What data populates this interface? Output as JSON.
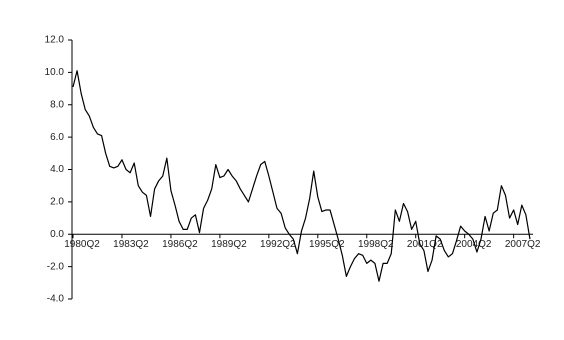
{
  "chart_data": {
    "type": "line",
    "categories": [
      "1980Q2",
      null,
      null,
      null,
      null,
      null,
      null,
      null,
      null,
      null,
      null,
      null,
      "1983Q2",
      null,
      null,
      null,
      null,
      null,
      null,
      null,
      null,
      null,
      null,
      null,
      "1986Q2",
      null,
      null,
      null,
      null,
      null,
      null,
      null,
      null,
      null,
      null,
      null,
      "1989Q2",
      null,
      null,
      null,
      null,
      null,
      null,
      null,
      null,
      null,
      null,
      null,
      "1992Q2",
      null,
      null,
      null,
      null,
      null,
      null,
      null,
      null,
      null,
      null,
      null,
      "1995Q2",
      null,
      null,
      null,
      null,
      null,
      null,
      null,
      null,
      null,
      null,
      null,
      "1998Q2",
      null,
      null,
      null,
      null,
      null,
      null,
      null,
      null,
      null,
      null,
      null,
      "2001Q2",
      null,
      null,
      null,
      null,
      null,
      null,
      null,
      null,
      null,
      null,
      null,
      "2004Q2",
      null,
      null,
      null,
      null,
      null,
      null,
      null,
      null,
      null,
      null,
      null,
      "2007Q2",
      null,
      null,
      null,
      null
    ],
    "values": [
      9.1,
      10.1,
      8.7,
      7.7,
      7.3,
      6.6,
      6.2,
      6.1,
      5.0,
      4.2,
      4.1,
      4.2,
      4.6,
      4.0,
      3.8,
      4.4,
      3.0,
      2.6,
      2.4,
      1.1,
      2.8,
      3.3,
      3.6,
      4.7,
      2.7,
      1.8,
      0.8,
      0.3,
      0.3,
      1.0,
      1.2,
      0.1,
      1.6,
      2.1,
      2.8,
      4.3,
      3.5,
      3.6,
      4.0,
      3.6,
      3.3,
      2.8,
      2.4,
      2.0,
      2.8,
      3.6,
      4.3,
      4.5,
      3.6,
      2.6,
      1.6,
      1.3,
      0.4,
      0.0,
      -0.3,
      -1.2,
      0.2,
      1.0,
      2.2,
      3.9,
      2.3,
      1.4,
      1.5,
      1.5,
      0.6,
      -0.3,
      -1.3,
      -2.6,
      -2.0,
      -1.5,
      -1.2,
      -1.3,
      -1.8,
      -1.6,
      -1.8,
      -2.9,
      -1.8,
      -1.8,
      -1.2,
      1.5,
      0.8,
      1.9,
      1.4,
      0.3,
      0.8,
      -0.6,
      -1.0,
      -2.3,
      -1.6,
      -0.1,
      -0.3,
      -1.0,
      -1.4,
      -1.2,
      -0.4,
      0.5,
      0.2,
      0.0,
      -0.3,
      -1.1,
      -0.3,
      1.1,
      0.2,
      1.3,
      1.5,
      3.0,
      2.4,
      1.0,
      1.5,
      0.6,
      1.8,
      1.2,
      -0.3
    ],
    "color": "#000000",
    "ylim": [
      -4,
      12
    ],
    "yticks": [
      {
        "value": -4,
        "label": "-4.0"
      },
      {
        "value": -2,
        "label": "-2.0"
      },
      {
        "value": 0,
        "label": "0.0"
      },
      {
        "value": 2,
        "label": "2.0"
      },
      {
        "value": 4,
        "label": "4.0"
      },
      {
        "value": 6,
        "label": "6.0"
      },
      {
        "value": 8,
        "label": "8.0"
      },
      {
        "value": 10,
        "label": "10.0"
      },
      {
        "value": 12,
        "label": "12.0"
      }
    ]
  }
}
